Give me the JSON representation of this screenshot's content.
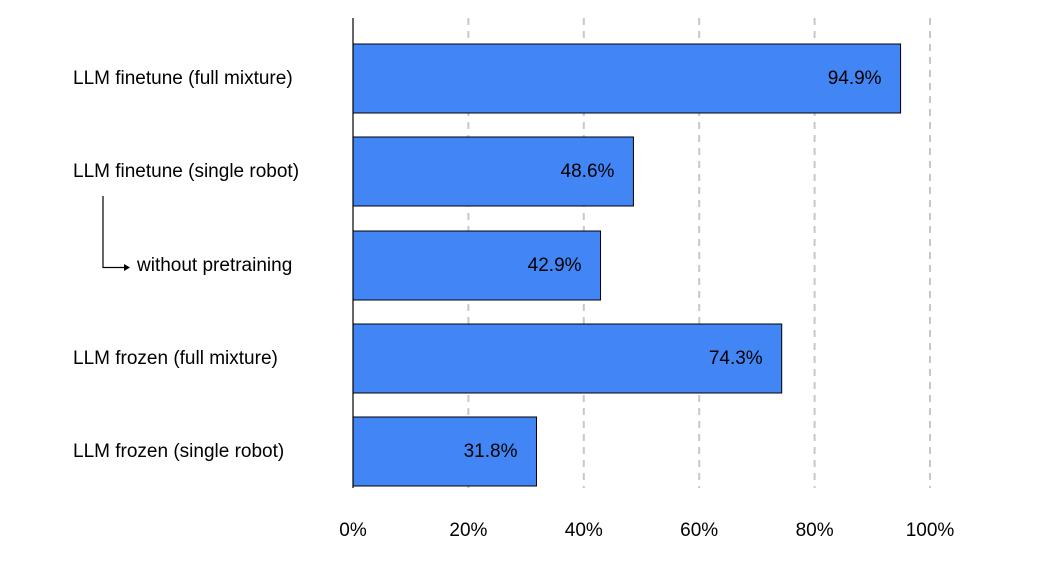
{
  "chart_data": {
    "type": "bar",
    "orientation": "horizontal",
    "categories": [
      "LLM finetune (full mixture)",
      "LLM finetune (single robot)",
      "without pretraining",
      "LLM frozen (full mixture)",
      "LLM frozen (single robot)"
    ],
    "values": [
      94.9,
      48.6,
      42.9,
      74.3,
      31.8
    ],
    "value_labels": [
      "94.9%",
      "48.6%",
      "42.9%",
      "74.3%",
      "31.8%"
    ],
    "sub_item_of": {
      "2": 1
    },
    "xlim": [
      0,
      100
    ],
    "xticks": [
      0,
      20,
      40,
      60,
      80,
      100
    ],
    "xtick_labels": [
      "0%",
      "20%",
      "40%",
      "60%",
      "80%",
      "100%"
    ],
    "grid": "vertical dashed",
    "bar_color": "#4285f4",
    "bar_edge_color": "#000000",
    "title": "",
    "xlabel": "",
    "ylabel": ""
  }
}
